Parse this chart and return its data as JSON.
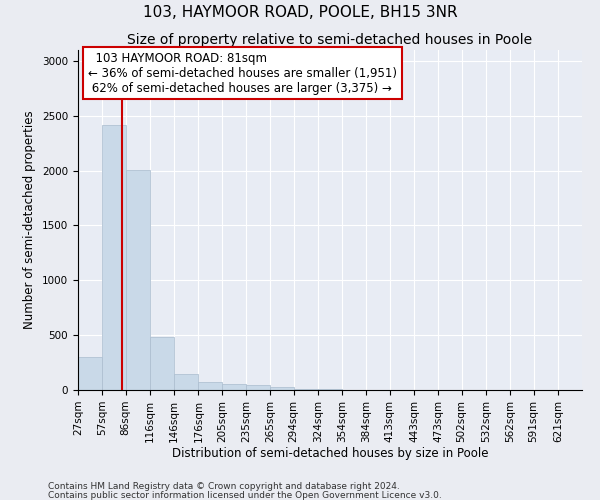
{
  "title": "103, HAYMOOR ROAD, POOLE, BH15 3NR",
  "subtitle": "Size of property relative to semi-detached houses in Poole",
  "xlabel": "Distribution of semi-detached houses by size in Poole",
  "ylabel": "Number of semi-detached properties",
  "footnote1": "Contains HM Land Registry data © Crown copyright and database right 2024.",
  "footnote2": "Contains public sector information licensed under the Open Government Licence v3.0.",
  "bar_color": "#c9d9e8",
  "bar_edge_color": "#aabcce",
  "annotation_box_color": "#cc0000",
  "vline_color": "#cc0000",
  "property_sqm": 81,
  "annotation_title": "103 HAYMOOR ROAD: 81sqm",
  "annotation_line1": "← 36% of semi-detached houses are smaller (1,951)",
  "annotation_line2": "62% of semi-detached houses are larger (3,375) →",
  "bin_labels": [
    "27sqm",
    "57sqm",
    "86sqm",
    "116sqm",
    "146sqm",
    "176sqm",
    "205sqm",
    "235sqm",
    "265sqm",
    "294sqm",
    "324sqm",
    "354sqm",
    "384sqm",
    "413sqm",
    "443sqm",
    "473sqm",
    "502sqm",
    "532sqm",
    "562sqm",
    "591sqm",
    "621sqm"
  ],
  "bin_starts": [
    27,
    57,
    86,
    116,
    146,
    176,
    205,
    235,
    265,
    294,
    324,
    354,
    384,
    413,
    443,
    473,
    502,
    532,
    562,
    591,
    621
  ],
  "bar_heights": [
    300,
    2420,
    2010,
    480,
    150,
    75,
    55,
    50,
    30,
    8,
    5,
    3,
    2,
    1,
    1,
    1,
    0,
    0,
    0,
    0,
    0
  ],
  "ylim": [
    0,
    3100
  ],
  "yticks": [
    0,
    500,
    1000,
    1500,
    2000,
    2500,
    3000
  ],
  "background_color": "#eaecf2",
  "plot_background": "#e8ecf4",
  "grid_color": "#ffffff",
  "title_fontsize": 11,
  "subtitle_fontsize": 10,
  "axis_label_fontsize": 8.5,
  "tick_fontsize": 7.5,
  "annot_fontsize": 8.5
}
